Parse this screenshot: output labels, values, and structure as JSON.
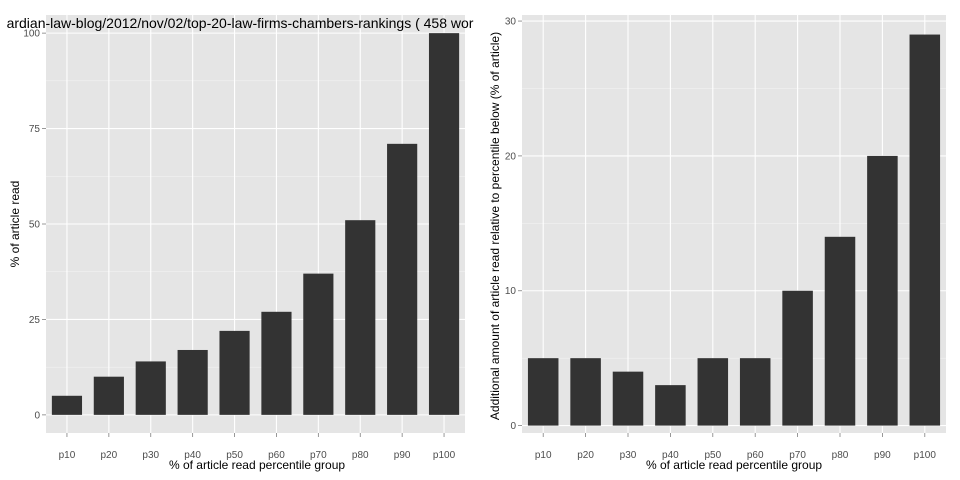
{
  "chart_data": [
    {
      "type": "bar",
      "title": "ardian-law-blog/2012/nov/02/top-20-law-firms-chambers-rankings ( 458 wor",
      "xlabel": "% of article read percentile group",
      "ylabel": "% of article read",
      "categories": [
        "p10",
        "p20",
        "p30",
        "p40",
        "p50",
        "p60",
        "p70",
        "p80",
        "p90",
        "p100"
      ],
      "values": [
        5,
        10,
        14,
        17,
        22,
        27,
        37,
        51,
        71,
        100
      ],
      "ylim": [
        -4.75,
        104.75
      ],
      "yticks": [
        0,
        25,
        50,
        75,
        100
      ],
      "grid": true,
      "colors": {
        "bar": "#333333",
        "panel": "#e5e5e5",
        "grid": "#ffffff"
      }
    },
    {
      "type": "bar",
      "title": "",
      "xlabel": "% of article read percentile group",
      "ylabel": "Additional amount of article read relative to percentile below (% of article)",
      "categories": [
        "p10",
        "p20",
        "p30",
        "p40",
        "p50",
        "p60",
        "p70",
        "p80",
        "p90",
        "p100"
      ],
      "values": [
        5,
        5,
        4,
        3,
        5,
        5,
        10,
        14,
        20,
        29
      ],
      "ylim": [
        -0.55,
        30.45
      ],
      "yticks": [
        0,
        10,
        20,
        30
      ],
      "grid": true,
      "colors": {
        "bar": "#333333",
        "panel": "#e5e5e5",
        "grid": "#ffffff"
      }
    }
  ]
}
